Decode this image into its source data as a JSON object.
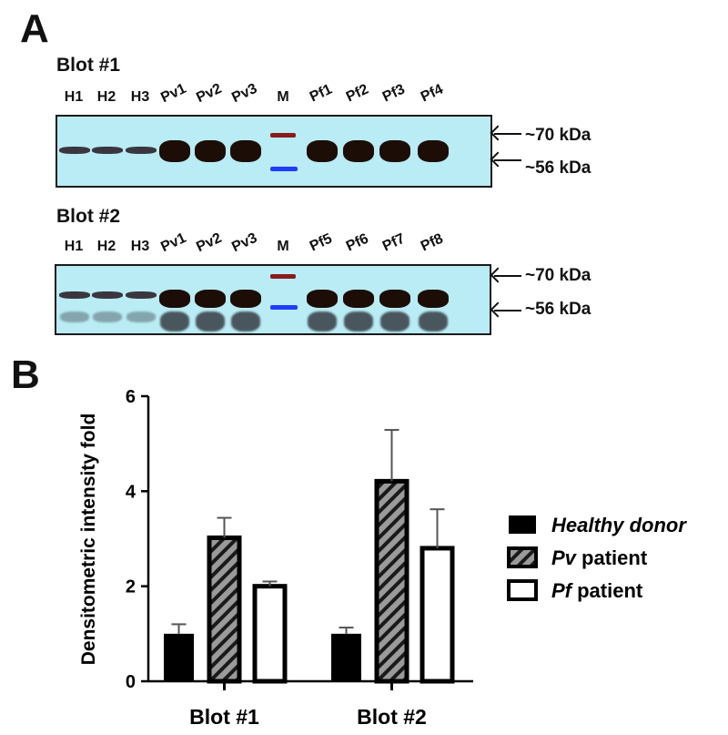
{
  "panel_a": {
    "letter": "A",
    "blot1": {
      "title": "Blot #1",
      "lanes": [
        "H1",
        "H2",
        "H3",
        "Pv1",
        "Pv2",
        "Pv3",
        "M",
        "Pf1",
        "Pf2",
        "Pf3",
        "Pf4"
      ],
      "markers": [
        "~70 kDa",
        "~56 kDa"
      ]
    },
    "blot2": {
      "title": "Blot #2",
      "lanes": [
        "H1",
        "H2",
        "H3",
        "Pv1",
        "Pv2",
        "Pv3",
        "M",
        "Pf5",
        "Pf6",
        "Pf7",
        "Pf8"
      ],
      "markers": [
        "~70 kDa",
        "~56 kDa"
      ]
    },
    "colors": {
      "membrane": "#b9ecf4",
      "marker_70": "#8b1a1a",
      "marker_56": "#1f3cff",
      "band": "#1c0d06"
    }
  },
  "panel_b": {
    "letter": "B"
  },
  "chart_data": {
    "type": "bar",
    "title": "",
    "xlabel": "",
    "ylabel": "Densitometric intensity fold",
    "ylim": [
      0,
      6
    ],
    "yticks": [
      0,
      2,
      4,
      6
    ],
    "categories": [
      "Blot #1",
      "Blot #2"
    ],
    "series": [
      {
        "name": "Healthy donor",
        "values": [
          1.0,
          1.0
        ],
        "error": [
          0.2,
          0.13
        ],
        "fill": "#000000",
        "pattern": "solid"
      },
      {
        "name": "Pv patient",
        "values": [
          3.02,
          4.21
        ],
        "error": [
          0.42,
          1.08
        ],
        "fill": "#9a9a9a",
        "pattern": "hatched"
      },
      {
        "name": "Pf patient",
        "values": [
          2.0,
          2.8
        ],
        "error": [
          0.1,
          0.82
        ],
        "fill": "#ffffff",
        "pattern": "open"
      }
    ],
    "legend": {
      "position": "right",
      "items": [
        {
          "italic": "Healthy donor",
          "rest": ""
        },
        {
          "italic": "Pv",
          "rest": " patient"
        },
        {
          "italic": "Pf",
          "rest": " patient"
        }
      ]
    },
    "grid": false
  }
}
